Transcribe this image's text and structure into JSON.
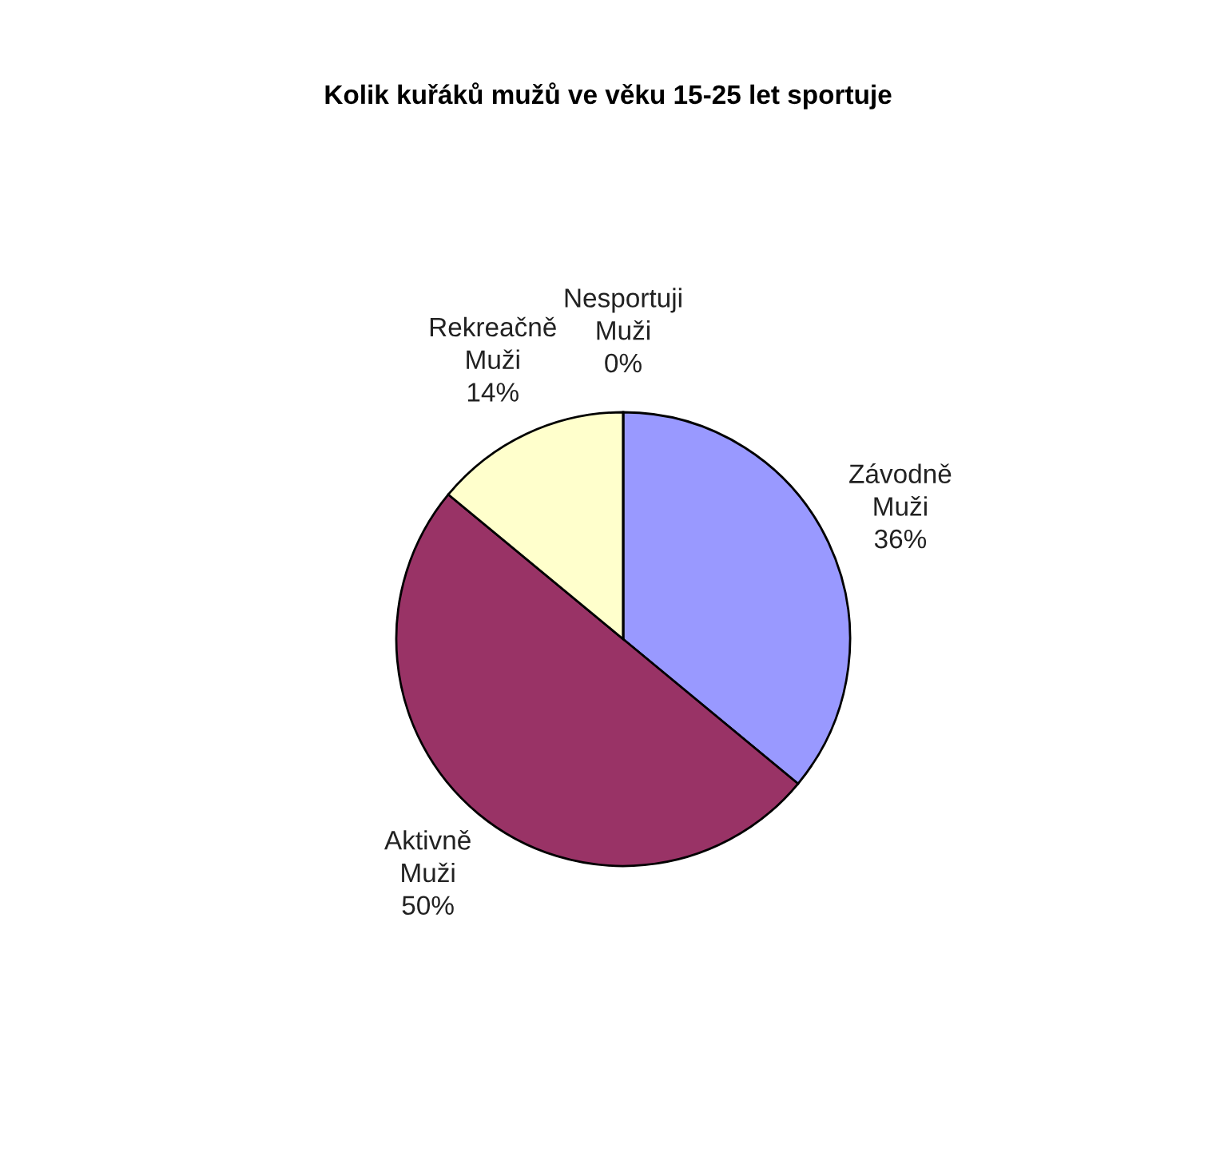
{
  "chart_data": {
    "type": "pie",
    "title": "Kolik kuřáků mužů ve věku 15-25 let sportuje",
    "categories": [
      "Závodně\nMuži",
      "Aktivně\nMuži",
      "Rekreačně\nMuži",
      "Nesportuji\nMuži"
    ],
    "values": [
      36,
      50,
      14,
      0
    ],
    "value_labels": [
      "36%",
      "50%",
      "14%",
      "0%"
    ],
    "colors": [
      "#9999ff",
      "#993366",
      "#ffffcc",
      "#ccffff"
    ]
  }
}
